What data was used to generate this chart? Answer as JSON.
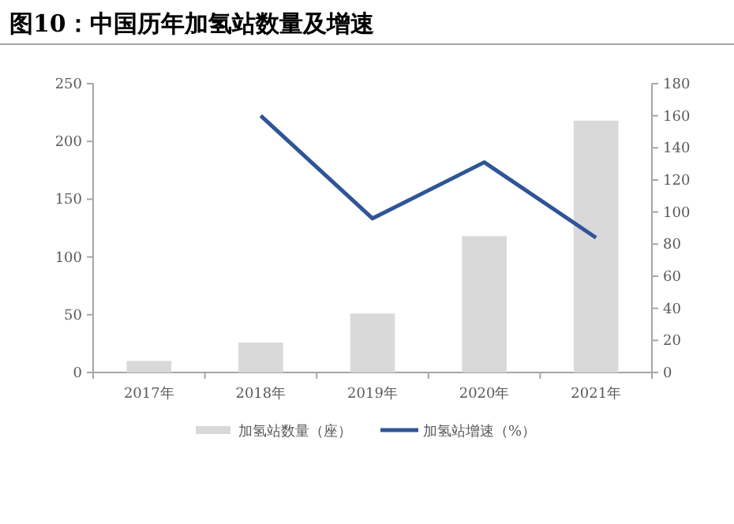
{
  "chart_data": {
    "type": "bar",
    "title": "图10：中国历年加氢站数量及增速",
    "categories": [
      "2017年",
      "2018年",
      "2019年",
      "2020年",
      "2021年"
    ],
    "series": [
      {
        "name": "加氢站数量（座）",
        "color": "#d9d9d9",
        "values": [
          10,
          26,
          51,
          118,
          218
        ]
      },
      {
        "name": "加氢站增速（%）",
        "type": "line",
        "axis": "y2",
        "color": "#2f5597",
        "values": [
          null,
          160,
          96,
          131,
          84
        ]
      }
    ],
    "ylim": [
      0,
      250
    ],
    "yticks": [
      0,
      50,
      100,
      150,
      200,
      250
    ],
    "y2lim": [
      0,
      180
    ],
    "y2ticks": [
      0,
      20,
      40,
      60,
      80,
      100,
      120,
      140,
      160,
      180
    ],
    "legend": "bottom"
  }
}
